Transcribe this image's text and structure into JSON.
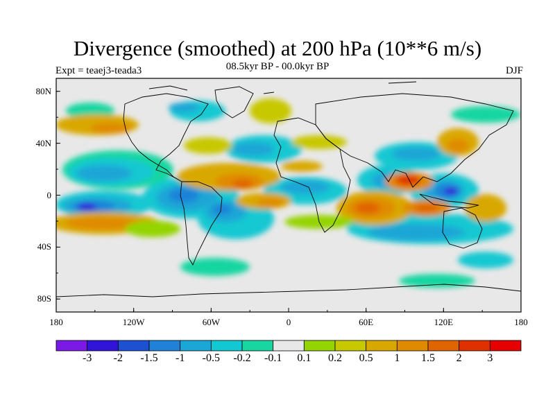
{
  "title": "Divergence (smoothed) at 200 hPa (10**6 m/s)",
  "subtitle": "08.5kyr BP - 00.0kyr BP",
  "left_label": "Expt = teaej3-teada3",
  "right_label": "DJF",
  "lat_ticks": [
    "80N",
    "40N",
    "0",
    "40S",
    "80S"
  ],
  "lon_ticks": [
    "180",
    "120W",
    "60W",
    "0",
    "60E",
    "120E",
    "180"
  ],
  "colorbar": {
    "colors": [
      "#7b19e6",
      "#3214d9",
      "#1e50d2",
      "#1f82d8",
      "#1aa6d6",
      "#12c8d2",
      "#17d6a0",
      "#e8e8e8",
      "#94d400",
      "#c8c800",
      "#d9a800",
      "#e08a00",
      "#e06400",
      "#e03000",
      "#e60000"
    ],
    "labels": [
      "-3",
      "-2",
      "-1.5",
      "-1",
      "-0.5",
      "-0.2",
      "-0.1",
      "0.1",
      "0.2",
      "0.5",
      "1",
      "1.5",
      "2",
      "3"
    ]
  }
}
